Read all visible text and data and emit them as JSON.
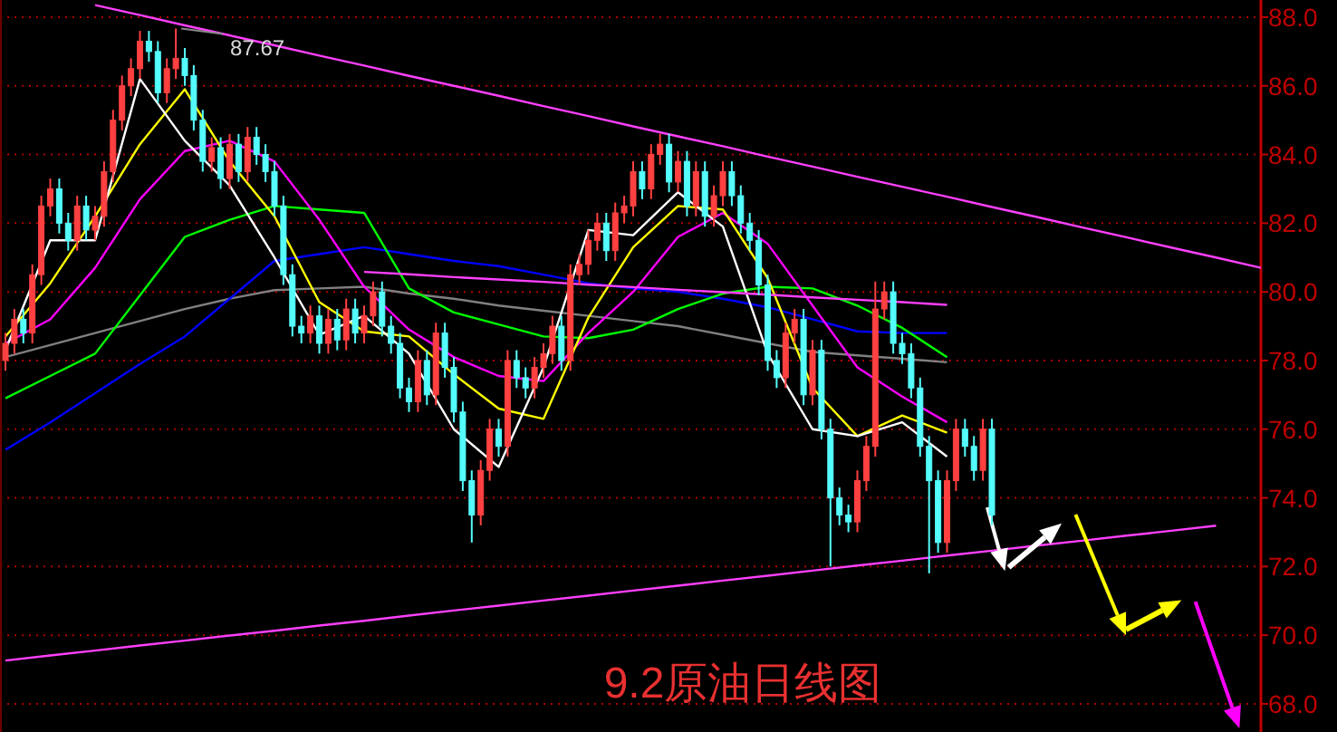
{
  "chart_data": [
    {
      "type": "candlestick",
      "ylim": [
        67.18,
        88.5
      ],
      "tick_labels": false,
      "colors": [
        "#ff4040",
        "#ff4040",
        "#54fcfc",
        "#ff4040",
        "#ff4040",
        "#ff4040",
        "#54fcfc",
        "#54fcfc",
        "#ff4040",
        "#54fcfc",
        "#ff4040",
        "#ff4040",
        "#ff4040",
        "#ff4040",
        "#ff4040",
        "#ff4040",
        "#54fcfc",
        "#54fcfc",
        "#ff4040",
        "#ff4040",
        "#54fcfc",
        "#54fcfc",
        "#54fcfc",
        "#ff4040",
        "#54fcfc",
        "#ff4040",
        "#54fcfc",
        "#ff4040",
        "#54fcfc",
        "#54fcfc",
        "#54fcfc",
        "#54fcfc",
        "#54fcfc",
        "#54fcfc",
        "#ff4040",
        "#54fcfc",
        "#ff4040",
        "#54fcfc",
        "#ff4040",
        "#54fcfc",
        "#ff4040",
        "#ff4040",
        "#54fcfc",
        "#54fcfc",
        "#54fcfc",
        "#54fcfc",
        "#ff4040",
        "#54fcfc",
        "#ff4040",
        "#54fcfc",
        "#54fcfc",
        "#54fcfc",
        "#54fcfc",
        "#ff4040",
        "#ff4040",
        "#54fcfc",
        "#ff4040",
        "#54fcfc",
        "#54fcfc",
        "#ff4040",
        "#ff4040",
        "#ff4040",
        "#54fcfc",
        "#ff4040",
        "#ff4040",
        "#ff4040",
        "#ff4040",
        "#54fcfc",
        "#ff4040",
        "#ff4040",
        "#ff4040",
        "#54fcfc",
        "#ff4040",
        "#ff4040",
        "#54fcfc",
        "#ff4040",
        "#54fcfc",
        "#ff4040",
        "#54fcfc",
        "#ff4040",
        "#ff4040",
        "#54fcfc",
        "#54fcfc",
        "#54fcfc",
        "#54fcfc",
        "#54fcfc",
        "#54fcfc",
        "#ff4040",
        "#ff4040",
        "#54fcfc",
        "#ff4040",
        "#54fcfc",
        "#54fcfc",
        "#54fcfc",
        "#54fcfc",
        "#ff4040",
        "#ff4040",
        "#ff4040",
        "#ff4040",
        "#54fcfc",
        "#54fcfc",
        "#54fcfc",
        "#54fcfc",
        "#54fcfc",
        "#54fcfc",
        "#ff4040",
        "#ff4040",
        "#54fcfc",
        "#54fcfc",
        "#ff4040",
        "#54fcfc"
      ],
      "categories": [
        null,
        null,
        null,
        null,
        null,
        null,
        null,
        null,
        null,
        null,
        null,
        null,
        null,
        null,
        null,
        null,
        null,
        null,
        null,
        null,
        null,
        null,
        null,
        null,
        null,
        null,
        null,
        null,
        null,
        null,
        null,
        null,
        null,
        null,
        null,
        null,
        null,
        null,
        null,
        null,
        null,
        null,
        null,
        null,
        null,
        null,
        null,
        null,
        null,
        null,
        null,
        null,
        null,
        null,
        null,
        null,
        null,
        null,
        null,
        null,
        null,
        null,
        null,
        null,
        null,
        null,
        null,
        null,
        null,
        null,
        null,
        null,
        null,
        null,
        null,
        null,
        null,
        null,
        null,
        null,
        null,
        null,
        null,
        null,
        null,
        null,
        null,
        null,
        null,
        null,
        null,
        null,
        null,
        null,
        null,
        null,
        null,
        null,
        null,
        null,
        null,
        null,
        null,
        null,
        null,
        null,
        null,
        null,
        null,
        null,
        null
      ],
      "ohlc": [
        [
          78.0,
          78.8,
          77.7,
          78.5
        ],
        [
          78.5,
          79.5,
          78.2,
          79.2
        ],
        [
          79.2,
          79.5,
          78.5,
          78.8
        ],
        [
          78.8,
          80.8,
          78.5,
          80.5
        ],
        [
          80.5,
          82.8,
          80.2,
          82.5
        ],
        [
          82.5,
          83.3,
          82.2,
          83.0
        ],
        [
          83.0,
          83.3,
          81.7,
          82.0
        ],
        [
          82.0,
          82.3,
          81.2,
          81.5
        ],
        [
          81.5,
          82.8,
          81.2,
          82.5
        ],
        [
          82.5,
          82.8,
          81.5,
          81.8
        ],
        [
          81.8,
          82.5,
          81.5,
          82.2
        ],
        [
          82.2,
          83.8,
          81.9,
          83.5
        ],
        [
          83.5,
          85.3,
          83.2,
          85.0
        ],
        [
          85.0,
          86.3,
          84.7,
          86.0
        ],
        [
          86.0,
          86.8,
          85.7,
          86.5
        ],
        [
          86.5,
          87.6,
          86.2,
          87.3
        ],
        [
          87.3,
          87.6,
          86.7,
          87.0
        ],
        [
          87.0,
          87.3,
          85.5,
          85.8
        ],
        [
          85.8,
          86.8,
          85.5,
          86.5
        ],
        [
          86.5,
          87.67,
          86.2,
          86.8
        ],
        [
          86.8,
          87.1,
          86.0,
          86.3
        ],
        [
          86.3,
          86.6,
          84.7,
          85.0
        ],
        [
          85.0,
          85.3,
          83.5,
          83.8
        ],
        [
          83.8,
          84.5,
          83.5,
          84.2
        ],
        [
          84.2,
          84.5,
          83.0,
          83.3
        ],
        [
          83.3,
          84.6,
          83.0,
          84.3
        ],
        [
          84.3,
          84.6,
          83.2,
          83.5
        ],
        [
          83.5,
          84.8,
          83.2,
          84.5
        ],
        [
          84.5,
          84.8,
          83.7,
          84.0
        ],
        [
          84.0,
          84.3,
          83.2,
          83.5
        ],
        [
          83.5,
          83.8,
          82.2,
          82.5
        ],
        [
          82.5,
          82.8,
          80.2,
          80.5
        ],
        [
          80.5,
          80.8,
          78.7,
          79.0
        ],
        [
          79.0,
          79.3,
          78.5,
          78.8
        ],
        [
          78.8,
          79.6,
          78.5,
          79.3
        ],
        [
          79.3,
          79.6,
          78.2,
          78.5
        ],
        [
          78.5,
          79.5,
          78.2,
          79.2
        ],
        [
          79.2,
          79.5,
          78.3,
          78.6
        ],
        [
          78.6,
          79.8,
          78.3,
          79.5
        ],
        [
          79.5,
          79.8,
          78.5,
          78.8
        ],
        [
          78.8,
          79.6,
          78.5,
          79.3
        ],
        [
          79.3,
          80.3,
          79.0,
          80.0
        ],
        [
          80.0,
          80.3,
          78.7,
          79.0
        ],
        [
          79.0,
          79.3,
          78.2,
          78.5
        ],
        [
          78.5,
          78.8,
          76.9,
          77.2
        ],
        [
          77.2,
          77.5,
          76.5,
          76.8
        ],
        [
          76.8,
          78.3,
          76.5,
          78.0
        ],
        [
          78.0,
          78.3,
          76.7,
          77.0
        ],
        [
          77.0,
          79.1,
          76.7,
          78.8
        ],
        [
          78.8,
          79.1,
          77.5,
          77.8
        ],
        [
          77.8,
          78.1,
          76.2,
          76.5
        ],
        [
          76.5,
          76.8,
          74.2,
          74.5
        ],
        [
          74.5,
          74.8,
          72.7,
          73.5
        ],
        [
          73.5,
          75.1,
          73.2,
          74.8
        ],
        [
          74.8,
          76.3,
          74.5,
          76.0
        ],
        [
          76.0,
          76.3,
          75.2,
          75.5
        ],
        [
          75.5,
          78.3,
          75.2,
          78.0
        ],
        [
          78.0,
          78.3,
          77.2,
          77.5
        ],
        [
          77.5,
          77.8,
          76.9,
          77.2
        ],
        [
          77.2,
          78.1,
          76.9,
          77.8
        ],
        [
          77.8,
          78.5,
          77.5,
          78.2
        ],
        [
          78.2,
          79.3,
          77.9,
          79.0
        ],
        [
          79.0,
          79.3,
          77.7,
          78.0
        ],
        [
          78.0,
          80.8,
          77.7,
          80.5
        ],
        [
          80.5,
          81.1,
          80.2,
          80.8
        ],
        [
          80.8,
          81.8,
          80.5,
          81.5
        ],
        [
          81.5,
          82.3,
          81.2,
          82.0
        ],
        [
          82.0,
          82.3,
          80.9,
          81.2
        ],
        [
          81.2,
          82.6,
          80.9,
          82.3
        ],
        [
          82.3,
          82.8,
          82.0,
          82.5
        ],
        [
          82.5,
          83.8,
          82.2,
          83.5
        ],
        [
          83.5,
          83.8,
          82.7,
          83.0
        ],
        [
          83.0,
          84.3,
          82.7,
          84.0
        ],
        [
          84.0,
          84.6,
          83.7,
          84.3
        ],
        [
          84.3,
          84.6,
          82.9,
          83.2
        ],
        [
          83.2,
          84.1,
          82.9,
          83.8
        ],
        [
          83.8,
          84.1,
          82.2,
          82.5
        ],
        [
          82.5,
          83.8,
          82.2,
          83.5
        ],
        [
          83.5,
          83.8,
          81.9,
          82.2
        ],
        [
          82.2,
          83.1,
          81.9,
          82.8
        ],
        [
          82.8,
          83.8,
          82.5,
          83.5
        ],
        [
          83.5,
          83.8,
          82.5,
          82.8
        ],
        [
          82.8,
          83.1,
          81.7,
          82.0
        ],
        [
          82.0,
          82.3,
          81.2,
          81.5
        ],
        [
          81.5,
          81.8,
          79.9,
          80.2
        ],
        [
          80.2,
          80.5,
          77.7,
          78.0
        ],
        [
          78.0,
          78.3,
          77.2,
          77.5
        ],
        [
          77.5,
          79.1,
          77.2,
          78.8
        ],
        [
          78.8,
          79.5,
          78.5,
          79.2
        ],
        [
          79.2,
          79.5,
          76.7,
          77.0
        ],
        [
          77.0,
          78.6,
          76.7,
          78.3
        ],
        [
          78.3,
          78.6,
          75.7,
          76.0
        ],
        [
          76.0,
          76.3,
          72.0,
          74.0
        ],
        [
          74.0,
          74.3,
          73.2,
          73.5
        ],
        [
          73.5,
          73.8,
          73.0,
          73.3
        ],
        [
          73.3,
          74.8,
          73.0,
          74.5
        ],
        [
          74.5,
          75.8,
          74.2,
          75.5
        ],
        [
          75.5,
          80.3,
          75.2,
          79.5
        ],
        [
          79.5,
          80.3,
          79.2,
          80.0
        ],
        [
          80.0,
          80.3,
          78.2,
          78.5
        ],
        [
          78.5,
          78.8,
          77.9,
          78.2
        ],
        [
          78.2,
          78.5,
          76.9,
          77.2
        ],
        [
          77.2,
          77.5,
          75.2,
          75.5
        ],
        [
          75.5,
          75.8,
          71.8,
          74.5
        ],
        [
          74.5,
          74.8,
          72.4,
          72.7
        ],
        [
          72.7,
          74.8,
          72.4,
          74.5
        ],
        [
          74.5,
          76.3,
          74.2,
          76.0
        ],
        [
          76.0,
          76.3,
          75.2,
          75.5
        ],
        [
          75.5,
          75.8,
          74.5,
          74.8
        ],
        [
          74.8,
          76.3,
          74.5,
          76.0
        ],
        [
          76.0,
          76.3,
          73.2,
          73.5
        ]
      ],
      "annotations": [
        "87.67"
      ]
    },
    {
      "type": "line",
      "title": "9.2原油日线图",
      "ylim": [
        67.18,
        88.5
      ],
      "grid": "y",
      "tick_labels": "y",
      "yticks": [
        {
          "value": 68,
          "label": "68.0"
        },
        {
          "value": 70,
          "label": "70.0"
        },
        {
          "value": 72,
          "label": "72.0"
        },
        {
          "value": 74,
          "label": "74.0"
        },
        {
          "value": 76,
          "label": "76.0"
        },
        {
          "value": 78,
          "label": "78.0"
        },
        {
          "value": 80,
          "label": "80.0"
        },
        {
          "value": 82,
          "label": "82.0"
        },
        {
          "value": 84,
          "label": "84.0"
        },
        {
          "value": 86,
          "label": "86.0"
        },
        {
          "value": 88,
          "label": "88.0"
        }
      ],
      "categories": [
        null,
        null,
        null,
        null,
        null,
        null,
        null,
        null,
        null,
        null,
        null,
        null,
        null,
        null,
        null,
        null,
        null,
        null,
        null,
        null,
        null,
        null,
        null,
        null,
        null,
        null,
        null,
        null,
        null
      ],
      "series": [
        {
          "color": "#808080",
          "values": [
            78.1,
            78.45,
            78.8,
            79.15,
            79.5,
            79.8,
            80.05,
            80.1,
            80.15,
            79.95,
            79.8,
            79.6,
            79.45,
            79.3,
            79.15,
            79.0,
            78.75,
            78.5,
            78.25,
            78.15,
            78.05,
            77.95,
            null,
            null,
            null,
            null,
            null,
            null,
            null
          ]
        },
        {
          "color": "#0000ff",
          "values": [
            75.4,
            76.2,
            77.05,
            77.9,
            78.7,
            79.8,
            80.9,
            81.1,
            81.3,
            81.1,
            80.9,
            80.75,
            80.5,
            80.25,
            80.1,
            80.0,
            79.8,
            79.55,
            79.2,
            78.85,
            78.8,
            78.8,
            null,
            null,
            null,
            null,
            null,
            null,
            null
          ]
        },
        {
          "color": "#00ff00",
          "values": [
            76.9,
            77.55,
            78.2,
            79.9,
            81.6,
            82.1,
            82.5,
            82.4,
            82.3,
            80.1,
            79.4,
            79.05,
            78.7,
            78.65,
            78.9,
            79.5,
            79.95,
            80.15,
            80.1,
            79.6,
            78.95,
            78.1,
            null,
            null,
            null,
            null,
            null,
            null,
            null
          ]
        },
        {
          "color": "#ff00ff",
          "values": [
            78.5,
            79.2,
            80.7,
            82.7,
            84.1,
            84.4,
            83.8,
            82.1,
            80.15,
            78.9,
            78.1,
            77.55,
            77.4,
            78.8,
            80.0,
            81.6,
            82.3,
            81.4,
            79.6,
            77.8,
            76.95,
            76.2,
            null,
            null,
            null,
            null,
            null,
            null,
            null
          ]
        },
        {
          "color": "#ffff00",
          "values": [
            78.7,
            80.25,
            82.2,
            84.3,
            85.9,
            83.8,
            82.2,
            79.7,
            78.85,
            78.7,
            77.6,
            76.6,
            76.3,
            79.25,
            81.3,
            82.5,
            82.4,
            80.4,
            77.2,
            75.8,
            76.4,
            75.9,
            null,
            null,
            null,
            null,
            null,
            null,
            null
          ]
        },
        {
          "color": "#ffffff",
          "values": [
            78.3,
            81.5,
            81.5,
            86.2,
            84.4,
            83.1,
            81.0,
            78.75,
            79.3,
            78.2,
            76.0,
            74.9,
            77.8,
            81.8,
            81.65,
            82.9,
            81.9,
            78.2,
            76.0,
            75.8,
            76.2,
            75.2,
            null,
            null,
            null,
            null,
            null,
            null,
            null
          ]
        },
        {
          "color": "#ff40ff",
          "values": [
            null,
            null,
            null,
            null,
            null,
            null,
            null,
            null,
            80.58,
            80.51,
            80.43,
            80.36,
            80.29,
            80.21,
            80.14,
            80.06,
            79.99,
            79.92,
            79.84,
            79.77,
            79.7,
            79.62,
            null,
            null,
            null,
            null,
            null,
            null,
            null
          ]
        },
        {
          "color": "#ff40ff",
          "values": [
            null,
            null,
            88.35,
            88.06,
            87.76,
            87.47,
            87.18,
            86.88,
            86.59,
            86.29,
            86.0,
            85.71,
            85.41,
            85.12,
            84.82,
            84.53,
            84.24,
            83.94,
            83.65,
            83.35,
            83.06,
            82.77,
            82.47,
            82.18,
            81.88,
            81.59,
            81.29,
            81.0,
            80.7
          ]
        },
        {
          "color": "#ff40ff",
          "values": [
            69.26,
            69.41,
            69.55,
            69.7,
            69.84,
            69.99,
            70.13,
            70.28,
            70.42,
            70.57,
            70.72,
            70.86,
            71.01,
            71.15,
            71.3,
            71.44,
            71.59,
            71.73,
            71.88,
            72.03,
            72.17,
            72.32,
            72.46,
            72.61,
            72.75,
            72.9,
            73.04,
            73.19,
            null
          ]
        }
      ]
    }
  ]
}
